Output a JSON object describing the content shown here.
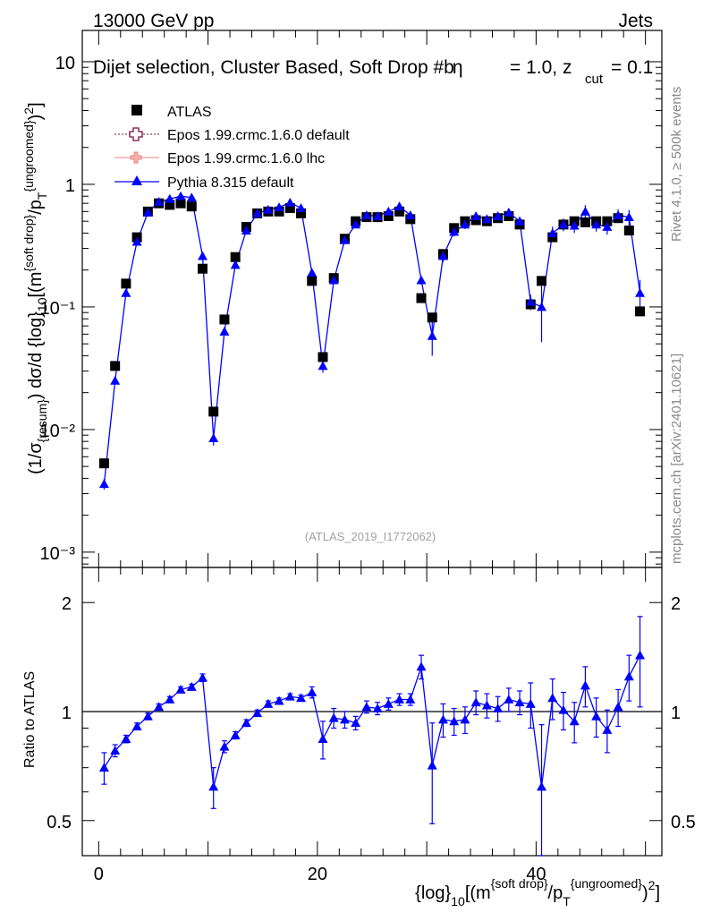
{
  "header": {
    "energy_label": "13000 GeV pp",
    "category_label": "Jets",
    "plot_title": "Dijet selection, Cluster Based, Soft Drop #b",
    "plot_title_tail": "= 1.0, z",
    "plot_title_sub": "cut",
    "plot_title_end": "= 0.1",
    "beta_symbol": "η",
    "analysis_id": "(ATLAS_2019_I1772062)",
    "rivet_label": "Rivet 4.1.0, ≥ 500k events",
    "mcplots_label": "mcplots.cern.ch [arXiv:2401.10621]"
  },
  "legend": [
    {
      "label": "ATLAS",
      "color": "#000000",
      "marker": "square"
    },
    {
      "label": "Epos 1.99.crmc.1.6.0 default",
      "color": "#7a0f3a",
      "marker": "open-cross"
    },
    {
      "label": "Epos 1.99.crmc.1.6.0 lhc",
      "color": "#f08080",
      "marker": "cross"
    },
    {
      "label": "Pythia 8.315 default",
      "color": "#0000ff",
      "marker": "triangle"
    }
  ],
  "axes": {
    "ylabel_main": "(1/σ_{resum}) dσ/d {log}_{10}[(m^{soft drop}/p_{T}^{ungroomed})^{2}]",
    "ylabel_ratio": "Ratio to ATLAS",
    "xlabel": "{log}_{10}[(m^{soft drop}/p_{T}^{ungroomed})^{2}]",
    "main_ytick_labels": [
      "10⁻³",
      "10⁻²",
      "10⁻¹",
      "1",
      "10"
    ],
    "ratio_ytick_labels": [
      "0.5",
      "1",
      "2"
    ],
    "xtick_labels": [
      "0",
      "20",
      "40"
    ]
  },
  "chart_data": [
    {
      "type": "scatter",
      "panel": "main",
      "title": "Dijet selection, Cluster Based, Soft Drop",
      "xlabel": "{log}_{10}[(m^{soft drop}/p_{T}^{ungroomed})^{2}]",
      "ylabel": "(1/σ_{resum}) dσ/d {log}_{10}[(m^{soft drop}/p_{T}^{ungroomed})^{2}]",
      "yscale": "log",
      "xlim": [
        -1.5,
        51.5
      ],
      "ylim": [
        0.00075,
        18
      ],
      "x": [
        0.5,
        1.5,
        2.5,
        3.5,
        4.5,
        5.5,
        6.5,
        7.5,
        8.5,
        9.5,
        10.5,
        11.5,
        12.5,
        13.5,
        14.5,
        15.5,
        16.5,
        17.5,
        18.5,
        19.5,
        20.5,
        21.5,
        22.5,
        23.5,
        24.5,
        25.5,
        26.5,
        27.5,
        28.5,
        29.5,
        30.5,
        31.5,
        32.5,
        33.5,
        34.5,
        35.5,
        36.5,
        37.5,
        38.5,
        39.5,
        40.5,
        41.5,
        42.5,
        43.5,
        44.5,
        45.5,
        46.5,
        47.5,
        48.5,
        49.5
      ],
      "series": [
        {
          "name": "ATLAS",
          "values": [
            0.0053,
            0.033,
            0.155,
            0.37,
            0.6,
            0.7,
            0.68,
            0.7,
            0.66,
            0.205,
            0.014,
            0.079,
            0.255,
            0.45,
            0.58,
            0.6,
            0.6,
            0.64,
            0.58,
            0.163,
            0.039,
            0.172,
            0.36,
            0.5,
            0.54,
            0.54,
            0.55,
            0.6,
            0.52,
            0.118,
            0.082,
            0.27,
            0.44,
            0.5,
            0.51,
            0.5,
            0.53,
            0.55,
            0.47,
            0.105,
            0.163,
            0.37,
            0.47,
            0.5,
            0.49,
            0.5,
            0.5,
            0.53,
            0.42,
            0.092
          ]
        },
        {
          "name": "Pythia 8.315 default",
          "values": [
            0.0036,
            0.025,
            0.13,
            0.34,
            0.59,
            0.72,
            0.76,
            0.8,
            0.78,
            0.26,
            0.0085,
            0.063,
            0.22,
            0.42,
            0.58,
            0.62,
            0.65,
            0.71,
            0.64,
            0.19,
            0.033,
            0.165,
            0.35,
            0.47,
            0.56,
            0.55,
            0.6,
            0.66,
            0.56,
            0.165,
            0.058,
            0.26,
            0.41,
            0.47,
            0.55,
            0.52,
            0.55,
            0.59,
            0.5,
            0.11,
            0.1,
            0.4,
            0.47,
            0.46,
            0.6,
            0.47,
            0.45,
            0.56,
            0.54,
            0.13
          ]
        }
      ],
      "legend_position": "top-left"
    },
    {
      "type": "line",
      "panel": "ratio",
      "ylabel": "Ratio to ATLAS",
      "xlabel": "{log}_{10}[(m^{soft drop}/p_{T}^{ungroomed})^{2}]",
      "yscale": "log",
      "xlim": [
        -1.5,
        51.5
      ],
      "ylim": [
        0.4,
        2.5
      ],
      "reference_line": 1,
      "x": [
        0.5,
        1.5,
        2.5,
        3.5,
        4.5,
        5.5,
        6.5,
        7.5,
        8.5,
        9.5,
        10.5,
        11.5,
        12.5,
        13.5,
        14.5,
        15.5,
        16.5,
        17.5,
        18.5,
        19.5,
        20.5,
        21.5,
        22.5,
        23.5,
        24.5,
        25.5,
        26.5,
        27.5,
        28.5,
        29.5,
        30.5,
        31.5,
        32.5,
        33.5,
        34.5,
        35.5,
        36.5,
        37.5,
        38.5,
        39.5,
        40.5,
        41.5,
        42.5,
        43.5,
        44.5,
        45.5,
        46.5,
        47.5,
        48.5,
        49.5
      ],
      "series": [
        {
          "name": "Pythia 8.315 default",
          "values": [
            0.7,
            0.78,
            0.84,
            0.91,
            0.97,
            1.03,
            1.08,
            1.15,
            1.17,
            1.24,
            0.62,
            0.8,
            0.86,
            0.93,
            0.99,
            1.05,
            1.07,
            1.1,
            1.09,
            1.13,
            0.84,
            0.96,
            0.95,
            0.93,
            1.03,
            1.02,
            1.05,
            1.08,
            1.08,
            1.33,
            0.71,
            0.95,
            0.94,
            0.95,
            1.06,
            1.04,
            1.02,
            1.08,
            1.06,
            1.05,
            0.62,
            1.09,
            1.01,
            0.94,
            1.18,
            0.97,
            0.89,
            1.03,
            1.25,
            1.43
          ],
          "errors": [
            0.07,
            0.03,
            0.02,
            0.02,
            0.02,
            0.02,
            0.02,
            0.02,
            0.02,
            0.03,
            0.08,
            0.03,
            0.02,
            0.02,
            0.02,
            0.02,
            0.02,
            0.02,
            0.02,
            0.04,
            0.1,
            0.06,
            0.05,
            0.04,
            0.04,
            0.04,
            0.04,
            0.04,
            0.04,
            0.1,
            0.22,
            0.1,
            0.08,
            0.08,
            0.08,
            0.08,
            0.08,
            0.08,
            0.08,
            0.15,
            0.3,
            0.14,
            0.12,
            0.12,
            0.15,
            0.12,
            0.12,
            0.12,
            0.18,
            0.4
          ]
        }
      ]
    }
  ]
}
